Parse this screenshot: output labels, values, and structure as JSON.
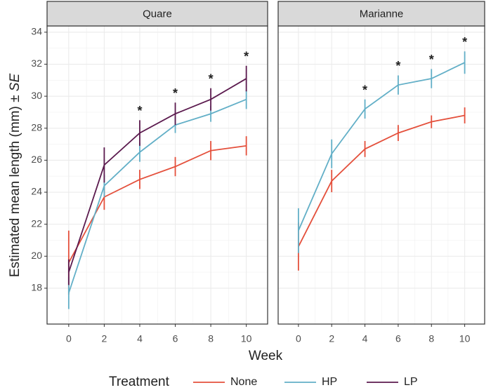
{
  "axes": {
    "ylabel": [
      "Estimated mean length (mm) ± ",
      "SE"
    ],
    "xlabel": "Week"
  },
  "legend": {
    "title": "Treatment",
    "position": "bottom"
  },
  "chart_data": [
    {
      "type": "line",
      "title": "Quare",
      "x": [
        0,
        2,
        4,
        6,
        8,
        10
      ],
      "xlim": [
        -1.22,
        11.2
      ],
      "xticks": [
        0,
        2,
        4,
        6,
        8,
        10
      ],
      "ylim": [
        15.76,
        34.39
      ],
      "yticks": [
        18,
        20,
        22,
        24,
        26,
        28,
        30,
        32,
        34
      ],
      "grid": true,
      "series": [
        {
          "name": "None",
          "color": "#e4503c",
          "values": [
            19.6,
            23.7,
            24.8,
            25.6,
            26.6,
            26.9
          ],
          "errors": [
            2.0,
            0.8,
            0.6,
            0.6,
            0.6,
            0.6
          ]
        },
        {
          "name": "HP",
          "color": "#62afc7",
          "values": [
            17.7,
            24.4,
            26.5,
            28.2,
            28.9,
            29.8
          ],
          "errors": [
            1.0,
            0.7,
            0.6,
            0.5,
            0.5,
            0.6
          ]
        },
        {
          "name": "LP",
          "color": "#5b1a4e",
          "values": [
            19.0,
            25.7,
            27.7,
            28.9,
            29.8,
            31.1
          ],
          "errors": [
            0.8,
            1.1,
            0.8,
            0.7,
            0.7,
            0.8
          ]
        }
      ],
      "annotations": [
        {
          "x": 4,
          "text": "*"
        },
        {
          "x": 6,
          "text": "*"
        },
        {
          "x": 8,
          "text": "*"
        },
        {
          "x": 10,
          "text": "*"
        }
      ]
    },
    {
      "type": "line",
      "title": "Marianne",
      "x": [
        0,
        2,
        4,
        6,
        8,
        10
      ],
      "xlim": [
        -1.22,
        11.2
      ],
      "xticks": [
        0,
        2,
        4,
        6,
        8,
        10
      ],
      "ylim": [
        15.76,
        34.39
      ],
      "yticks": [
        18,
        20,
        22,
        24,
        26,
        28,
        30,
        32,
        34
      ],
      "grid": true,
      "series": [
        {
          "name": "None",
          "color": "#e4503c",
          "values": [
            20.6,
            24.7,
            26.7,
            27.7,
            28.4,
            28.8
          ],
          "errors": [
            1.5,
            0.7,
            0.5,
            0.5,
            0.4,
            0.5
          ]
        },
        {
          "name": "HP",
          "color": "#62afc7",
          "values": [
            21.6,
            26.4,
            29.2,
            30.7,
            31.1,
            32.1
          ],
          "errors": [
            1.4,
            0.9,
            0.6,
            0.6,
            0.6,
            0.7
          ]
        }
      ],
      "annotations": [
        {
          "x": 4,
          "text": "*"
        },
        {
          "x": 6,
          "text": "*"
        },
        {
          "x": 8,
          "text": "*"
        },
        {
          "x": 10,
          "text": "*"
        }
      ]
    }
  ]
}
